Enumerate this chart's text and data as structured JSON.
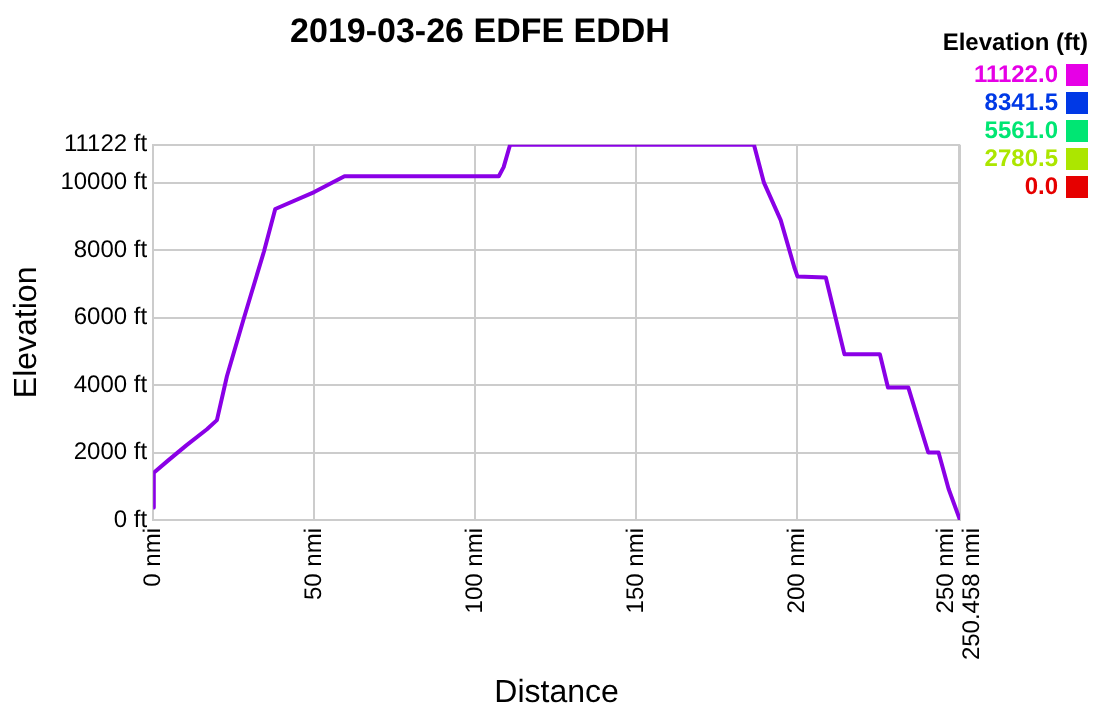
{
  "chart_data": {
    "type": "line",
    "title": "2019-03-26 EDFE EDDH",
    "xlabel": "Distance",
    "ylabel": "Elevation",
    "clabel": "Elevation (ft)",
    "clim": [
      0,
      11122
    ],
    "cticks": [
      {
        "value": 11122,
        "label": "11122.0"
      },
      {
        "value": 8341.5,
        "label": "8341.5"
      },
      {
        "value": 5561,
        "label": "5561.0"
      },
      {
        "value": 2780.5,
        "label": "2780.5"
      },
      {
        "value": 0,
        "label": "0.0"
      }
    ],
    "x": [
      0,
      0.2,
      4.6,
      10.4,
      16.7,
      19.8,
      22.9,
      28,
      34.4,
      37.9,
      50,
      59.4,
      107.3,
      108.8,
      110.8,
      186.5,
      189.6,
      194.8,
      199,
      200,
      208.8,
      214.6,
      225.6,
      228.1,
      234.4,
      237.5,
      240.6,
      243.8,
      246.9,
      250.458
    ],
    "series": [
      {
        "color": "#8a00e6",
        "values": [
          370,
          1400,
          1760,
          2220,
          2690,
          2960,
          4260,
          5930,
          7960,
          9220,
          9720,
          10190,
          10190,
          10460,
          11122,
          11122,
          10000,
          8890,
          7500,
          7220,
          7190,
          4910,
          4910,
          3930,
          3930,
          2960,
          2000,
          2000,
          925,
          0
        ]
      }
    ],
    "xlim": [
      0,
      250.458
    ],
    "xticks": [
      {
        "value": 0,
        "label": "0 nmi"
      },
      {
        "value": 50,
        "label": "50 nmi"
      },
      {
        "value": 100,
        "label": "100 nmi"
      },
      {
        "value": 150,
        "label": "150 nmi"
      },
      {
        "value": 200,
        "label": "200 nmi"
      },
      {
        "value": 250,
        "label": "250 nmi"
      },
      {
        "value": 250.458,
        "label": "250.458 nmi"
      }
    ],
    "ylim": [
      0,
      11122
    ],
    "yticks": [
      {
        "value": 0,
        "label": "0 ft"
      },
      {
        "value": 2000,
        "label": "2000 ft"
      },
      {
        "value": 4000,
        "label": "4000 ft"
      },
      {
        "value": 6000,
        "label": "6000 ft"
      },
      {
        "value": 8000,
        "label": "8000 ft"
      },
      {
        "value": 10000,
        "label": "10000 ft"
      },
      {
        "value": 11122,
        "label": "11122 ft"
      }
    ],
    "grid": true,
    "legend": false
  }
}
